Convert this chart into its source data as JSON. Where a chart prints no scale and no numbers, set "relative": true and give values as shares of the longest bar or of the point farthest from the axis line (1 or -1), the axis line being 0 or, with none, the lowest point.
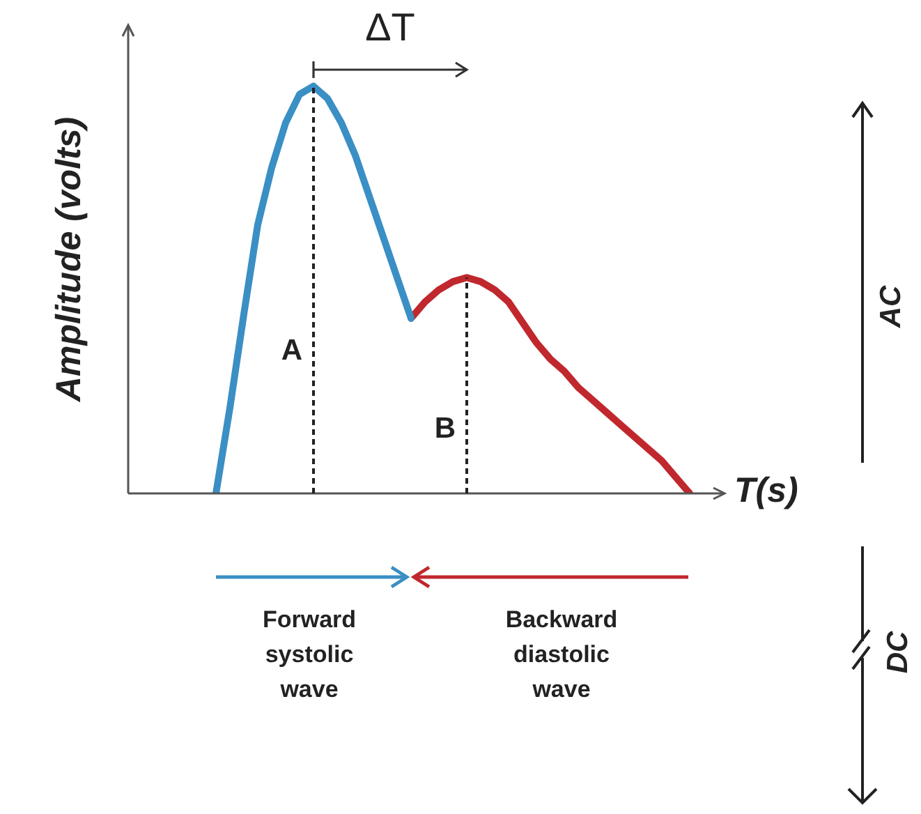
{
  "chart_data": {
    "type": "line",
    "relative": true,
    "xlabel": "T(s)",
    "ylabel": "Amplitude (volts)",
    "tick_labels": false,
    "marker": "none",
    "categories": [
      null,
      null,
      null,
      null,
      null,
      null,
      null,
      null,
      null,
      null,
      null,
      null,
      null,
      null,
      null,
      null,
      null,
      null,
      null,
      null,
      null,
      null,
      null,
      null,
      null,
      null,
      null,
      null,
      null,
      null,
      null,
      null,
      null,
      null,
      null
    ],
    "series": [
      {
        "color": "#3a8fc4",
        "values": [
          0,
          0.21,
          0.44,
          0.66,
          0.8,
          0.91,
          0.98,
          1,
          0.97,
          0.91,
          0.83,
          0.73,
          0.63,
          0.53,
          0.43,
          null,
          null,
          null,
          null,
          null,
          null,
          null,
          null,
          null,
          null,
          null,
          null,
          null,
          null,
          null,
          null,
          null,
          null,
          null,
          null
        ]
      },
      {
        "color": "#c0282d",
        "values": [
          null,
          null,
          null,
          null,
          null,
          null,
          null,
          null,
          null,
          null,
          null,
          null,
          null,
          null,
          0.43,
          0.47,
          0.5,
          0.52,
          0.53,
          0.52,
          0.5,
          0.47,
          0.42,
          0.37,
          0.33,
          0.3,
          0.26,
          0.23,
          0.2,
          0.17,
          0.14,
          0.11,
          0.08,
          0.04,
          0
        ]
      }
    ],
    "annotations": [
      "A",
      "B",
      "ΔT",
      "Forward systolic wave",
      "Backward diastolic wave",
      "AC",
      "DC"
    ]
  }
}
